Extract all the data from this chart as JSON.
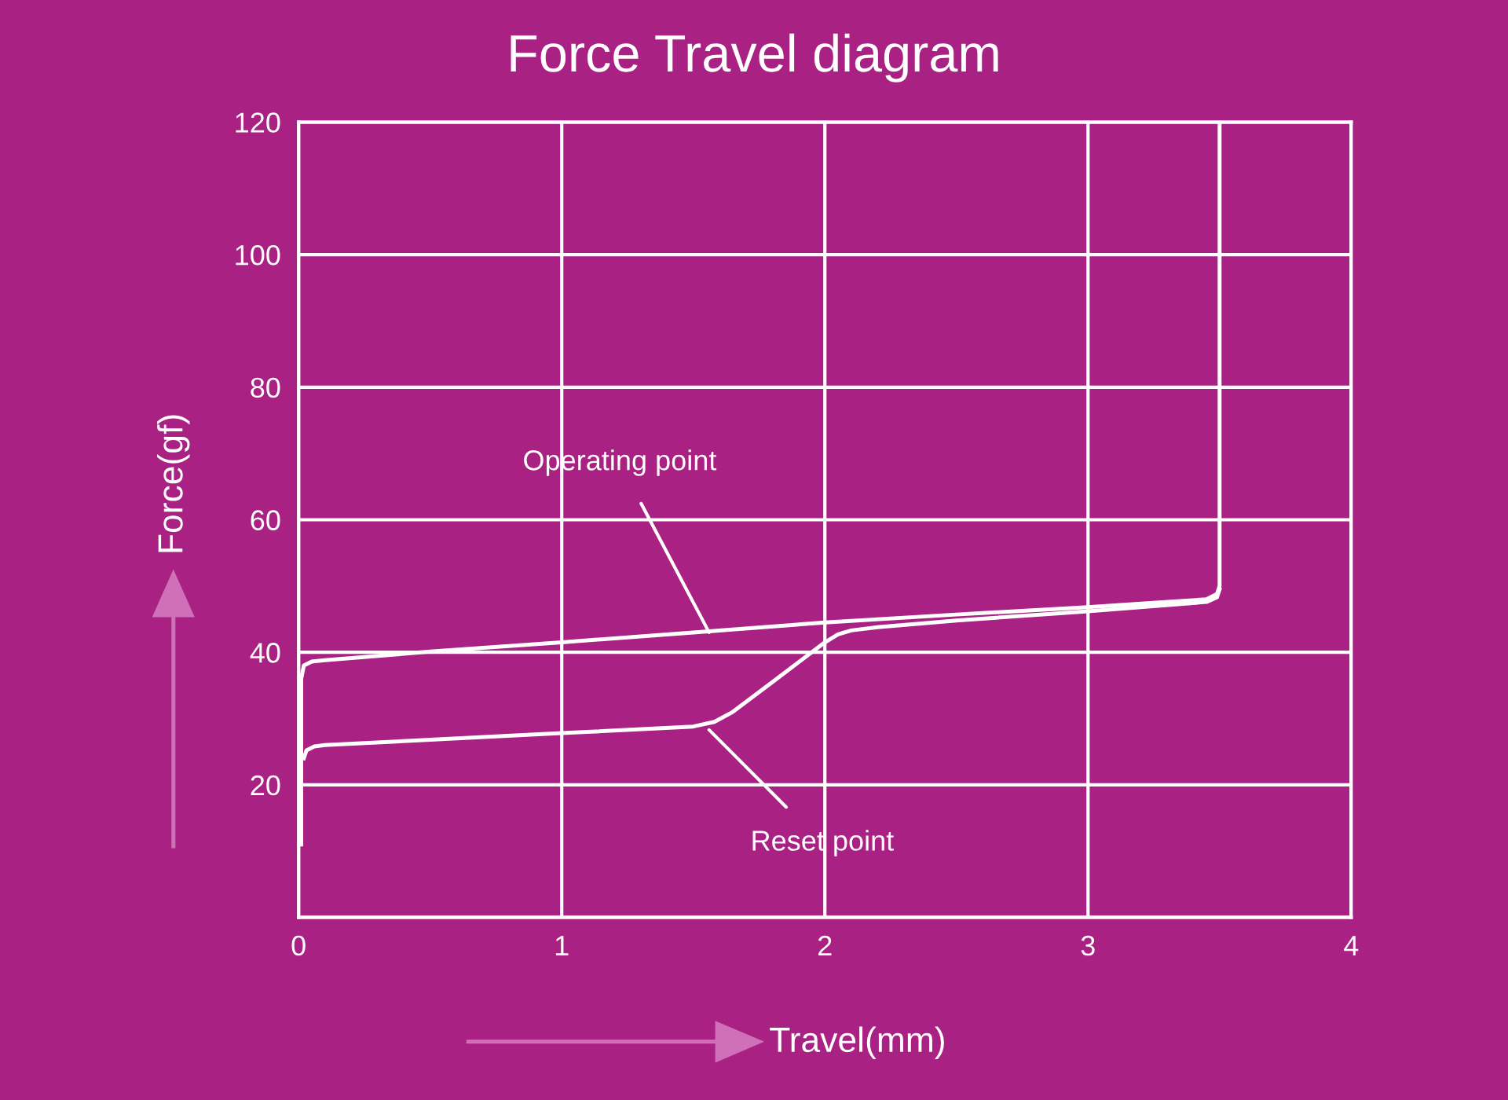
{
  "chart_data": {
    "type": "line",
    "title": "Force Travel diagram",
    "xlabel": "Travel(mm)",
    "ylabel": "Force(gf)",
    "series": [
      {
        "color": "#ffffff",
        "x": [
          0.01,
          0.01,
          0.02,
          0.05,
          0.1,
          0.5,
          1.0,
          1.5,
          2.0,
          2.5,
          3.0,
          3.45,
          3.49,
          3.5,
          3.5
        ],
        "values": [
          11,
          36,
          38,
          38.6,
          38.8,
          40.1,
          41.5,
          43,
          44.5,
          45.7,
          46.8,
          48,
          48.8,
          50,
          120
        ]
      },
      {
        "color": "#ffffff",
        "x": [
          0.02,
          0.03,
          0.06,
          0.1,
          0.5,
          1.0,
          1.5,
          1.58,
          1.65,
          1.8,
          2.0,
          2.05,
          2.1,
          2.2,
          2.5,
          3.0,
          3.45,
          3.49,
          3.5
        ],
        "values": [
          24,
          25.2,
          25.8,
          26,
          26.8,
          27.8,
          28.8,
          29.5,
          31,
          35.5,
          41.5,
          42.7,
          43.3,
          43.8,
          44.8,
          46.2,
          47.6,
          48.3,
          49.5
        ]
      }
    ],
    "annotations": [
      {
        "text": "Operating point",
        "x": 1.56,
        "y": 43
      },
      {
        "text": "Reset point",
        "x": 1.56,
        "y": 28.3
      }
    ],
    "xlim": [
      0,
      4
    ],
    "xticks": [
      0,
      1,
      2,
      3,
      4
    ],
    "ylim": [
      0,
      120
    ],
    "yticks": [
      {
        "value": 0,
        "label": null
      },
      20,
      40,
      60,
      80,
      100,
      120
    ],
    "grid": true,
    "line_style": "solid",
    "marker": "none",
    "legend": false
  }
}
